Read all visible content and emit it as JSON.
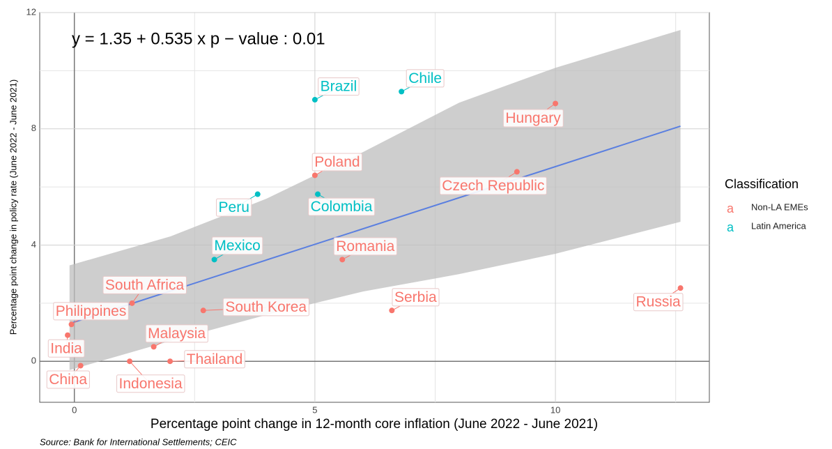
{
  "chart_data": {
    "type": "scatter",
    "annotation": "y = 1.35 + 0.535 x   p − value :   0.01",
    "xlabel": "Percentage point change in 12-month core inflation (June 2022 - June 2021)",
    "ylabel": "Percentage point change in policy rate (June 2022 - June 2021)",
    "source": "Source: Bank for International Settlements; CEIC",
    "legend_title": "Classification",
    "legend_key": "a",
    "xlim": [
      -0.72,
      13.2
    ],
    "ylim": [
      -1.41,
      12
    ],
    "xticks": [
      0,
      5,
      10
    ],
    "yticks": [
      0,
      4,
      8,
      12
    ],
    "xminor": [
      2.5,
      7.5,
      12.5
    ],
    "yminor": [
      2,
      6,
      10
    ],
    "grid": true,
    "fit": {
      "intercept": 1.35,
      "slope": 0.535,
      "color": "#5a7fe0",
      "band_x": [
        -0.1,
        2,
        4,
        6,
        8,
        10,
        12.6
      ],
      "band_lower": [
        -0.3,
        0.7,
        1.6,
        2.4,
        3.0,
        3.7,
        4.8
      ],
      "band_upper": [
        3.3,
        4.3,
        5.6,
        7.2,
        8.9,
        10.1,
        11.4
      ]
    },
    "series": [
      {
        "name": "Non-LA EMEs",
        "color": "#f8766d",
        "labels": [
          "Russia",
          "Hungary",
          "Czech Republic",
          "Poland",
          "Romania",
          "Serbia",
          "South Korea",
          "South Africa",
          "Philippines",
          "India",
          "China",
          "Indonesia",
          "Malaysia",
          "Thailand"
        ],
        "x": [
          12.6,
          10.0,
          9.2,
          5.0,
          5.57,
          6.6,
          2.68,
          1.2,
          -0.06,
          -0.14,
          0.13,
          1.15,
          1.65,
          1.99
        ],
        "values": [
          2.52,
          8.87,
          6.52,
          6.4,
          3.5,
          1.75,
          1.75,
          2.0,
          1.27,
          0.9,
          -0.15,
          0,
          0.5,
          0
        ]
      },
      {
        "name": "Latin America",
        "color": "#00bfc4",
        "labels": [
          "Chile",
          "Brazil",
          "Colombia",
          "Peru",
          "Mexico"
        ],
        "x": [
          6.8,
          5.0,
          5.06,
          3.81,
          2.91
        ],
        "values": [
          9.28,
          9.0,
          5.75,
          5.75,
          3.5
        ]
      }
    ]
  }
}
